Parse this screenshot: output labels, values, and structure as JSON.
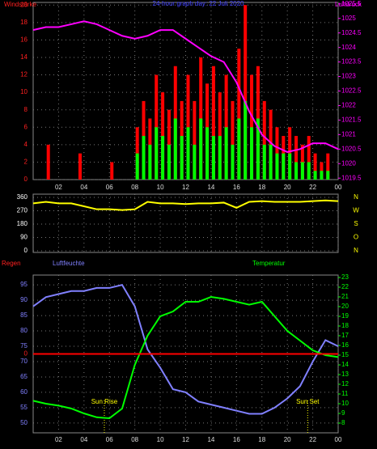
{
  "chart_data": [
    {
      "type": "bar",
      "title": "24-hour graph day: 22 Juli 2020",
      "ylabel": "Windstärke",
      "y2label": "Luftdruck",
      "ycolor": "#ff2020",
      "y2color": "#ff00ff",
      "grid": true,
      "x": [
        0,
        0.5,
        1,
        1.5,
        2,
        2.5,
        3,
        3.5,
        4,
        4.5,
        5,
        5.5,
        6,
        6.5,
        7,
        7.5,
        8,
        8.5,
        9,
        9.5,
        10,
        10.5,
        11,
        11.5,
        12,
        12.5,
        13,
        13.5,
        14,
        14.5,
        15,
        15.5,
        16,
        16.5,
        17,
        17.5,
        18,
        18.5,
        19,
        19.5,
        20,
        20.5,
        21,
        21.5,
        22,
        22.5,
        23,
        23.5
      ],
      "series": [
        {
          "color": "#ff0000",
          "values": [
            0,
            0,
            4,
            0,
            0,
            0,
            0,
            3,
            0,
            0,
            0,
            0,
            2,
            0,
            0,
            0,
            6,
            9,
            7,
            12,
            10,
            8,
            13,
            9,
            12,
            9,
            14,
            11,
            13,
            10,
            12,
            9,
            15,
            20,
            12,
            13,
            9,
            8,
            6,
            5,
            6,
            5,
            4,
            5,
            3,
            2,
            3,
            0
          ]
        },
        {
          "color": "#00ff00",
          "values": [
            0,
            0,
            0,
            0,
            0,
            0,
            0,
            0,
            0,
            0,
            0,
            0,
            0,
            0,
            0,
            0,
            3,
            5,
            4,
            6,
            5,
            4,
            7,
            5,
            6,
            4,
            7,
            6,
            5,
            5,
            6,
            4,
            7,
            9,
            6,
            7,
            4,
            4,
            3,
            3,
            3,
            2,
            2,
            2,
            1,
            1,
            1,
            0
          ]
        },
        {
          "type": "line",
          "axis": "y2",
          "color": "#ff00ff",
          "x": [
            0,
            1,
            2,
            3,
            4,
            5,
            6,
            7,
            8,
            9,
            10,
            11,
            12,
            13,
            14,
            15,
            16,
            17,
            18,
            19,
            20,
            21,
            22,
            23,
            24
          ],
          "values": [
            1024.6,
            1024.7,
            1024.7,
            1024.8,
            1024.9,
            1024.8,
            1024.6,
            1024.4,
            1024.3,
            1024.4,
            1024.6,
            1024.6,
            1024.3,
            1024.0,
            1023.7,
            1023.5,
            1022.8,
            1021.8,
            1021.0,
            1020.6,
            1020.4,
            1020.5,
            1020.7,
            1020.7,
            1020.5
          ]
        }
      ],
      "xlim": [
        0,
        24
      ],
      "xticks": [
        {
          "value": 2,
          "label": "02"
        },
        {
          "value": 4,
          "label": "04"
        },
        {
          "value": 6,
          "label": "06"
        },
        {
          "value": 8,
          "label": "08"
        },
        10,
        12,
        14,
        16,
        18,
        20,
        22,
        {
          "value": 24,
          "label": "00"
        }
      ],
      "ylim": [
        0,
        20.3
      ],
      "yticks": [
        0,
        2,
        4,
        6,
        8,
        10,
        12,
        14,
        16,
        18,
        20
      ],
      "y2lim": [
        1019.45,
        1025.55
      ],
      "y2ticks": [
        1019.5,
        1020,
        1020.5,
        1021,
        1021.5,
        1022,
        1022.5,
        1023,
        1023.5,
        1024,
        1024.5,
        1025,
        1025.5
      ]
    },
    {
      "type": "line",
      "ycolor": "#ffffff",
      "grid": true,
      "x": [
        0,
        1,
        2,
        3,
        4,
        5,
        6,
        7,
        8,
        9,
        10,
        11,
        12,
        13,
        14,
        15,
        16,
        17,
        18,
        19,
        20,
        21,
        22,
        23,
        24
      ],
      "series": [
        {
          "color": "#ffff00",
          "values": [
            320,
            330,
            320,
            320,
            300,
            280,
            280,
            275,
            280,
            330,
            320,
            320,
            315,
            320,
            320,
            325,
            290,
            330,
            335,
            330,
            330,
            330,
            335,
            340,
            335
          ]
        }
      ],
      "xlim": [
        0,
        24
      ],
      "ylim": [
        -11,
        382
      ],
      "yticks": [
        0,
        90,
        180,
        270,
        360
      ],
      "direction_labels": [
        "N",
        "W",
        "S",
        "O",
        "N"
      ]
    },
    {
      "type": "line",
      "ylabel": "Luftfeuchte",
      "y2label": "Temperatur",
      "y3label": "Regen",
      "ycolor": "#8080ff",
      "y2color": "#00ff00",
      "y3color": "#ff2020",
      "grid": true,
      "x": [
        0,
        1,
        2,
        3,
        4,
        5,
        6,
        7,
        8,
        9,
        10,
        11,
        12,
        13,
        14,
        15,
        16,
        17,
        18,
        19,
        20,
        21,
        22,
        23,
        24
      ],
      "series": [
        {
          "color": "#8080ff",
          "values": [
            88,
            91,
            92,
            93,
            93,
            94,
            94,
            95,
            88,
            74,
            68,
            61,
            60,
            57,
            56,
            55,
            54,
            53,
            53,
            55,
            58,
            62,
            70,
            77,
            75
          ]
        },
        {
          "color": "#00ff00",
          "axis": "y2",
          "values": [
            10.3,
            10.0,
            9.8,
            9.5,
            9.0,
            8.6,
            8.5,
            9.5,
            14,
            17,
            19,
            19.5,
            20.5,
            20.5,
            21,
            20.8,
            20.5,
            20.2,
            20.5,
            19,
            17.5,
            16.5,
            15.5,
            15,
            14.8
          ]
        },
        {
          "color": "#ff0000",
          "axis": "y3",
          "values": [
            0,
            0,
            0,
            0,
            0,
            0,
            0,
            0,
            0,
            0,
            0,
            0,
            0,
            0,
            0,
            0,
            0,
            0,
            0,
            0,
            0,
            0,
            0,
            0,
            0
          ]
        }
      ],
      "xlim": [
        0,
        24
      ],
      "xticks": [
        {
          "value": 2,
          "label": "02"
        },
        {
          "value": 4,
          "label": "04"
        },
        {
          "value": 6,
          "label": "06"
        },
        {
          "value": 8,
          "label": "08"
        },
        10,
        12,
        14,
        16,
        18,
        20,
        22,
        {
          "value": 24,
          "label": "00"
        }
      ],
      "ylim": [
        46.8,
        98.2
      ],
      "yticks": [
        50,
        55,
        60,
        65,
        70,
        75,
        80,
        85,
        90,
        95
      ],
      "y2lim": [
        7,
        23.25
      ],
      "y2ticks": [
        8,
        9,
        10,
        11,
        12,
        13,
        14,
        15,
        16,
        17,
        18,
        19,
        20,
        21,
        22,
        23
      ],
      "y3lim": [
        -1,
        1
      ],
      "y3ticks": [
        0
      ],
      "annotations": [
        {
          "text": "Sun Rise",
          "x": 5.6
        },
        {
          "text": "Sun Set",
          "x": 21.6
        }
      ]
    }
  ]
}
